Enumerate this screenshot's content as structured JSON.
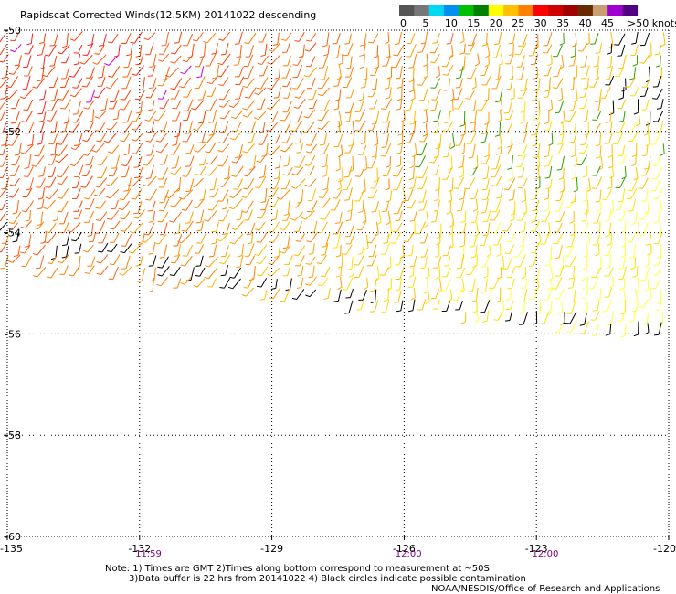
{
  "chart_data": {
    "type": "wind-barbs",
    "title": "Rapidscat Corrected Winds(12.5KM) 20141022 descending",
    "x_ticks": [
      "-135",
      "-132",
      "-129",
      "-126",
      "-123",
      "-120"
    ],
    "y_ticks": [
      "-50",
      "-52",
      "-54",
      "-56",
      "-58",
      "-60"
    ],
    "xlim": [
      -135,
      -120
    ],
    "ylim": [
      -60,
      -50
    ],
    "grid": true,
    "legend": {
      "placement": "top-right",
      "labels": [
        "0",
        "5",
        "10",
        "15",
        "20",
        "25",
        "30",
        "35",
        "40",
        "45",
        ">50 knots"
      ],
      "colors": [
        "#555555",
        "#777777",
        "#00d8f0",
        "#0090f0",
        "#00c000",
        "#008000",
        "#ffff00",
        "#ffc000",
        "#ff8000",
        "#ff0000",
        "#d00000",
        "#a00000",
        "#6a2a00",
        "#c8a070",
        "#a000d0",
        "#500080"
      ]
    },
    "swath_left_edge": [
      {
        "lon": -135,
        "lat": -54.6
      },
      {
        "lon": -120,
        "lat": -56.0
      }
    ],
    "swath_right_edge": [
      {
        "lon": -135,
        "lat": -50.0
      },
      {
        "lon": -120,
        "lat": -50.0
      }
    ],
    "contamination_band": [
      {
        "lon": -135,
        "lat": -53.9
      },
      {
        "lon": -127,
        "lat": -55.2
      },
      {
        "lon": -120,
        "lat": -55.9
      }
    ],
    "time_labels": [
      {
        "lon": -131.8,
        "text": "11:59"
      },
      {
        "lon": -125.9,
        "text": "12:00"
      },
      {
        "lon": -122.8,
        "text": "12:00"
      }
    ]
  },
  "notes": {
    "line1": "Note: 1) Times are GMT 2)Times along bottom correspond to measurement at ~50S",
    "line2": "3)Data buffer is 22 hrs from 20141022 4) Black circles indicate possible contamination",
    "line3": "NOAA/NESDIS/Office of Research and Applications"
  }
}
